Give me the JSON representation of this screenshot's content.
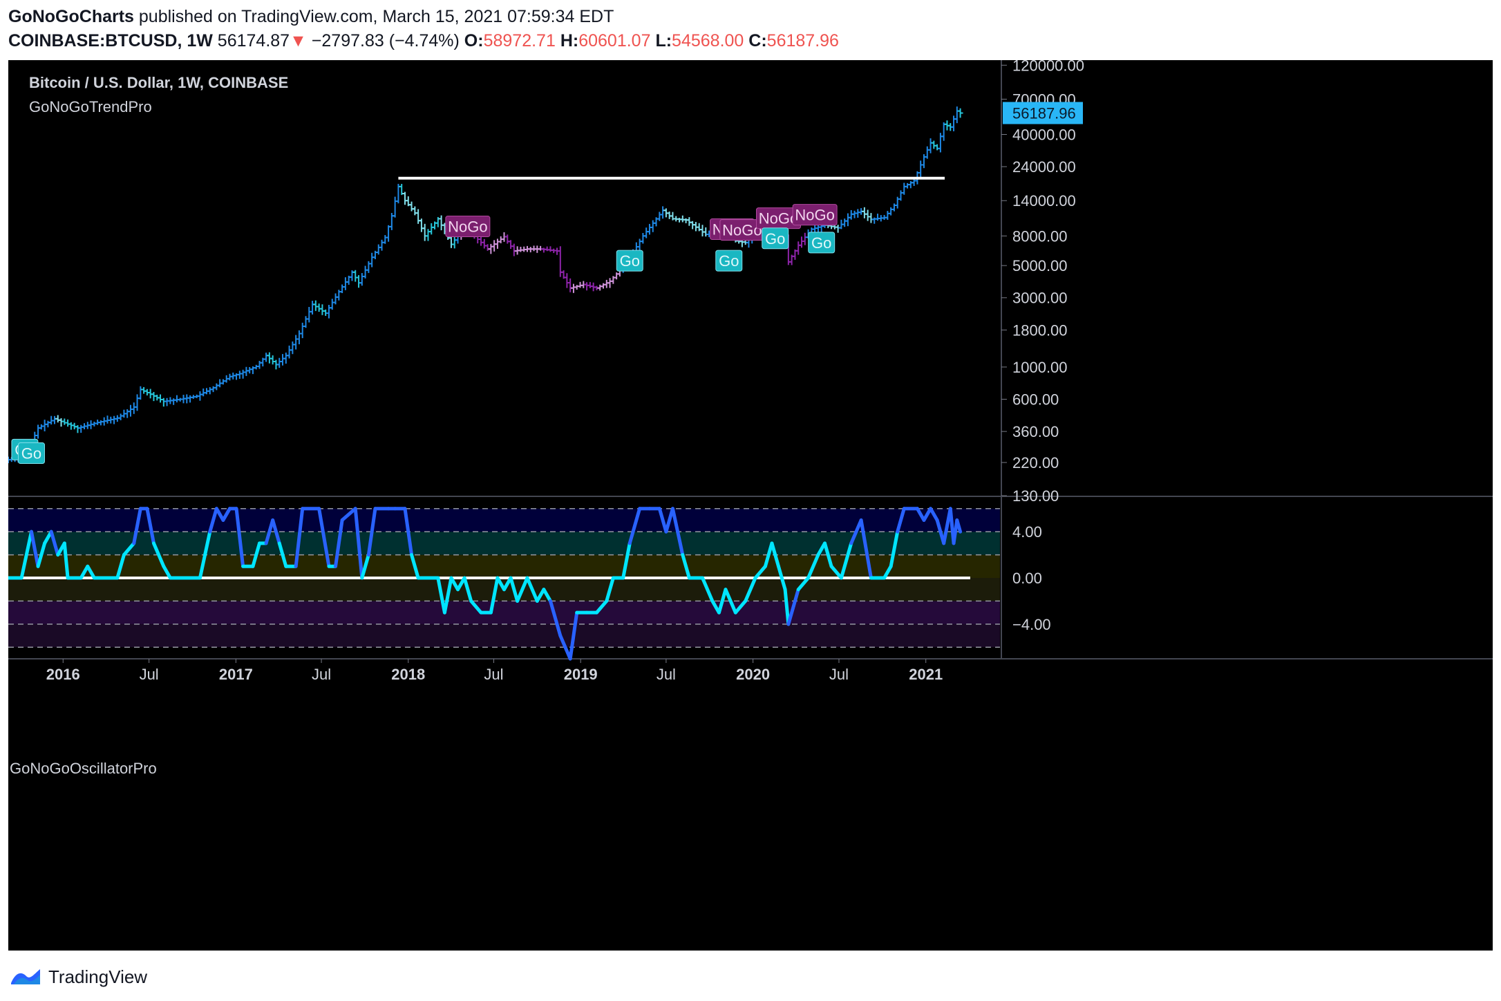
{
  "header": {
    "author": "GoNoGoCharts",
    "published_text": "published on TradingView.com, March 15, 2021 07:59:34 EDT",
    "symbol": "COINBASE:BTCUSD, 1W",
    "last_price": "56174.87",
    "change": "−2797.83 (−4.74%)",
    "open_label": "O:",
    "open": "58972.71",
    "high_label": "H:",
    "high": "60601.07",
    "low_label": "L:",
    "low": "54568.00",
    "close_label": "C:",
    "close": "56187.96"
  },
  "pane_titles": {
    "price": "Bitcoin / U.S. Dollar, 1W, COINBASE",
    "indicator": "GoNoGoTrendPro",
    "oscillator": "GoNoGoOscillatorPro"
  },
  "footer": {
    "brand": "TradingView"
  },
  "colors": {
    "background": "#000000",
    "axis_text": "#d1d4dc",
    "go_strong": "#1e88e5",
    "go": "#26c6da",
    "go_weak": "#80deea",
    "nogo": "#8e24aa",
    "nogo_weak": "#ce93d8",
    "amber": "#ff9800",
    "price_tag": "#29b6f6",
    "osc_go": "#00e5ff",
    "osc_strong": "#2962ff"
  },
  "chart_data": [
    {
      "type": "candlestick",
      "title": "Bitcoin / U.S. Dollar, 1W, COINBASE",
      "y_scale": "log",
      "ylim": [
        130,
        130000
      ],
      "y_ticks": [
        120000,
        70000,
        40000,
        24000,
        14000,
        8000,
        5000,
        3000,
        1800,
        1000,
        600,
        360,
        220,
        130
      ],
      "y_tick_labels": [
        "120000.00",
        "70000.00",
        "40000.00",
        "24000.00",
        "14000.00",
        "8000.00",
        "5000.00",
        "3000.00",
        "1800.00",
        "1000.00",
        "600.00",
        "360.00",
        "220.00",
        "130.00"
      ],
      "x_range": [
        "2015-09-07",
        "2021-06-07"
      ],
      "x_ticks": [
        "2016-01-01",
        "2016-07-01",
        "2017-01-01",
        "2017-07-01",
        "2018-01-01",
        "2018-07-01",
        "2019-01-01",
        "2019-07-01",
        "2020-01-01",
        "2020-07-01",
        "2021-01-01"
      ],
      "x_tick_labels": [
        "2016",
        "Jul",
        "2017",
        "Jul",
        "2018",
        "Jul",
        "2019",
        "Jul",
        "2020",
        "Jul",
        "2021"
      ],
      "price_path": [
        [
          "2015-09-07",
          230
        ],
        [
          "2015-10-05",
          245
        ],
        [
          "2015-10-26",
          300
        ],
        [
          "2015-11-09",
          380
        ],
        [
          "2015-12-14",
          440
        ],
        [
          "2016-02-01",
          380
        ],
        [
          "2016-03-14",
          415
        ],
        [
          "2016-04-25",
          445
        ],
        [
          "2016-05-30",
          530
        ],
        [
          "2016-06-13",
          700
        ],
        [
          "2016-07-04",
          650
        ],
        [
          "2016-08-01",
          580
        ],
        [
          "2016-09-05",
          600
        ],
        [
          "2016-10-10",
          630
        ],
        [
          "2016-11-14",
          720
        ],
        [
          "2016-12-19",
          860
        ],
        [
          "2017-01-09",
          900
        ],
        [
          "2017-02-13",
          1010
        ],
        [
          "2017-03-06",
          1200
        ],
        [
          "2017-03-27",
          1040
        ],
        [
          "2017-04-17",
          1200
        ],
        [
          "2017-05-15",
          1700
        ],
        [
          "2017-06-12",
          2700
        ],
        [
          "2017-07-10",
          2350
        ],
        [
          "2017-08-07",
          3300
        ],
        [
          "2017-09-04",
          4500
        ],
        [
          "2017-09-18",
          3800
        ],
        [
          "2017-10-16",
          5700
        ],
        [
          "2017-11-13",
          7800
        ],
        [
          "2017-11-27",
          11000
        ],
        [
          "2017-12-11",
          17500
        ],
        [
          "2017-12-25",
          14000
        ],
        [
          "2018-01-15",
          11500
        ],
        [
          "2018-02-05",
          8000
        ],
        [
          "2018-03-05",
          10500
        ],
        [
          "2018-04-02",
          7000
        ],
        [
          "2018-04-30",
          9200
        ],
        [
          "2018-05-21",
          8000
        ],
        [
          "2018-06-18",
          6500
        ],
        [
          "2018-07-23",
          7900
        ],
        [
          "2018-08-13",
          6300
        ],
        [
          "2018-09-10",
          6500
        ],
        [
          "2018-10-08",
          6500
        ],
        [
          "2018-11-12",
          6300
        ],
        [
          "2018-11-19",
          4500
        ],
        [
          "2018-12-10",
          3500
        ],
        [
          "2019-01-07",
          3700
        ],
        [
          "2019-02-04",
          3500
        ],
        [
          "2019-03-04",
          3900
        ],
        [
          "2019-04-08",
          5200
        ],
        [
          "2019-05-13",
          8000
        ],
        [
          "2019-06-24",
          12000
        ],
        [
          "2019-07-15",
          10500
        ],
        [
          "2019-08-12",
          10300
        ],
        [
          "2019-09-23",
          8200
        ],
        [
          "2019-10-28",
          9200
        ],
        [
          "2019-11-25",
          7400
        ],
        [
          "2019-12-16",
          7200
        ],
        [
          "2020-01-13",
          8800
        ],
        [
          "2020-02-10",
          10200
        ],
        [
          "2020-03-09",
          7900
        ],
        [
          "2020-03-16",
          5300
        ],
        [
          "2020-04-06",
          6900
        ],
        [
          "2020-05-04",
          8900
        ],
        [
          "2020-06-01",
          9500
        ],
        [
          "2020-06-29",
          9100
        ],
        [
          "2020-07-27",
          11300
        ],
        [
          "2020-08-17",
          11800
        ],
        [
          "2020-09-07",
          10400
        ],
        [
          "2020-10-05",
          10700
        ],
        [
          "2020-10-26",
          13000
        ],
        [
          "2020-11-16",
          17500
        ],
        [
          "2020-12-07",
          19200
        ],
        [
          "2020-12-28",
          28000
        ],
        [
          "2021-01-11",
          35000
        ],
        [
          "2021-01-25",
          32000
        ],
        [
          "2021-02-08",
          47000
        ],
        [
          "2021-02-22",
          45000
        ],
        [
          "2021-03-08",
          58000
        ],
        [
          "2021-03-15",
          56188
        ]
      ],
      "resistance_line": {
        "value": 20000,
        "start": "2017-12-11",
        "end": "2021-06-07"
      },
      "last_price_label": "56187.96",
      "annotations": [
        {
          "text": "Go",
          "type": "go",
          "date": "2015-10-12",
          "price": 270
        },
        {
          "text": "Go",
          "type": "go",
          "date": "2015-10-26",
          "price": 255
        },
        {
          "text": "NoGo",
          "type": "nogo",
          "date": "2018-05-07",
          "price": 9300
        },
        {
          "text": "Go",
          "type": "go",
          "date": "2019-04-15",
          "price": 5400
        },
        {
          "text": "NoGo",
          "type": "nogo",
          "date": "2019-11-18",
          "price": 8900
        },
        {
          "text": "NoGo",
          "type": "nogo",
          "date": "2019-12-09",
          "price": 8800
        },
        {
          "text": "Go",
          "type": "go",
          "date": "2019-11-11",
          "price": 5400
        },
        {
          "text": "NoGo",
          "type": "nogo",
          "date": "2020-02-24",
          "price": 10600
        },
        {
          "text": "Go",
          "type": "go",
          "date": "2020-02-17",
          "price": 7700
        },
        {
          "text": "NoGo",
          "type": "nogo",
          "date": "2020-05-11",
          "price": 11200
        },
        {
          "text": "Go",
          "type": "go",
          "date": "2020-05-25",
          "price": 7200
        }
      ]
    },
    {
      "type": "line",
      "title": "GoNoGoOscillatorPro",
      "ylim": [
        -7,
        7
      ],
      "y_ticks": [
        4,
        0,
        -4
      ],
      "y_tick_labels": [
        "4.00",
        "0.00",
        "−4.00"
      ],
      "bands": [
        -6,
        -4,
        -2,
        0,
        2,
        4,
        6
      ],
      "zero_line": 0,
      "series": [
        {
          "values": [
            [
              "2015-09-07",
              0
            ],
            [
              "2015-10-05",
              0
            ],
            [
              "2015-10-26",
              4
            ],
            [
              "2015-11-09",
              1
            ],
            [
              "2015-11-23",
              3
            ],
            [
              "2015-12-07",
              4
            ],
            [
              "2015-12-21",
              2
            ],
            [
              "2016-01-04",
              3
            ],
            [
              "2016-01-11",
              0
            ],
            [
              "2016-02-08",
              0
            ],
            [
              "2016-02-22",
              1
            ],
            [
              "2016-03-07",
              0
            ],
            [
              "2016-04-25",
              0
            ],
            [
              "2016-05-09",
              2
            ],
            [
              "2016-05-30",
              3
            ],
            [
              "2016-06-13",
              6
            ],
            [
              "2016-06-27",
              6
            ],
            [
              "2016-07-11",
              3
            ],
            [
              "2016-08-01",
              1
            ],
            [
              "2016-08-15",
              0
            ],
            [
              "2016-10-17",
              0
            ],
            [
              "2016-11-07",
              4
            ],
            [
              "2016-11-21",
              6
            ],
            [
              "2016-12-05",
              5
            ],
            [
              "2016-12-19",
              6
            ],
            [
              "2017-01-02",
              6
            ],
            [
              "2017-01-16",
              1
            ],
            [
              "2017-02-06",
              1
            ],
            [
              "2017-02-20",
              3
            ],
            [
              "2017-03-06",
              3
            ],
            [
              "2017-03-20",
              5
            ],
            [
              "2017-04-03",
              3
            ],
            [
              "2017-04-17",
              1
            ],
            [
              "2017-05-08",
              1
            ],
            [
              "2017-05-22",
              6
            ],
            [
              "2017-06-26",
              6
            ],
            [
              "2017-07-17",
              1
            ],
            [
              "2017-07-31",
              1
            ],
            [
              "2017-08-14",
              5
            ],
            [
              "2017-09-11",
              6
            ],
            [
              "2017-09-25",
              0
            ],
            [
              "2017-10-09",
              2
            ],
            [
              "2017-10-23",
              6
            ],
            [
              "2017-11-20",
              6
            ],
            [
              "2017-12-04",
              6
            ],
            [
              "2017-12-25",
              6
            ],
            [
              "2018-01-08",
              2
            ],
            [
              "2018-01-22",
              0
            ],
            [
              "2018-03-05",
              0
            ],
            [
              "2018-03-19",
              -3
            ],
            [
              "2018-04-02",
              0
            ],
            [
              "2018-04-16",
              -1
            ],
            [
              "2018-04-30",
              0
            ],
            [
              "2018-05-14",
              -2
            ],
            [
              "2018-06-04",
              -3
            ],
            [
              "2018-06-25",
              -3
            ],
            [
              "2018-07-09",
              0
            ],
            [
              "2018-07-23",
              -1
            ],
            [
              "2018-08-06",
              0
            ],
            [
              "2018-08-20",
              -2
            ],
            [
              "2018-09-10",
              0
            ],
            [
              "2018-10-01",
              -2
            ],
            [
              "2018-10-15",
              -1
            ],
            [
              "2018-10-29",
              -2
            ],
            [
              "2018-11-19",
              -5
            ],
            [
              "2018-12-10",
              -7
            ],
            [
              "2018-12-24",
              -3
            ],
            [
              "2019-01-14",
              -3
            ],
            [
              "2019-02-04",
              -3
            ],
            [
              "2019-02-25",
              -2
            ],
            [
              "2019-03-11",
              0
            ],
            [
              "2019-04-01",
              0
            ],
            [
              "2019-04-15",
              3
            ],
            [
              "2019-05-06",
              6
            ],
            [
              "2019-05-27",
              6
            ],
            [
              "2019-06-17",
              6
            ],
            [
              "2019-07-01",
              4
            ],
            [
              "2019-07-15",
              6
            ],
            [
              "2019-08-05",
              2
            ],
            [
              "2019-08-19",
              0
            ],
            [
              "2019-09-16",
              0
            ],
            [
              "2019-10-07",
              -2
            ],
            [
              "2019-10-21",
              -3
            ],
            [
              "2019-11-04",
              -1
            ],
            [
              "2019-11-25",
              -3
            ],
            [
              "2019-12-16",
              -2
            ],
            [
              "2020-01-06",
              0
            ],
            [
              "2020-01-27",
              1
            ],
            [
              "2020-02-10",
              3
            ],
            [
              "2020-02-24",
              1
            ],
            [
              "2020-03-09",
              -1
            ],
            [
              "2020-03-16",
              -4
            ],
            [
              "2020-04-06",
              -1
            ],
            [
              "2020-04-27",
              0
            ],
            [
              "2020-05-18",
              2
            ],
            [
              "2020-06-01",
              3
            ],
            [
              "2020-06-15",
              1
            ],
            [
              "2020-07-06",
              0
            ],
            [
              "2020-07-27",
              3
            ],
            [
              "2020-08-17",
              5
            ],
            [
              "2020-09-07",
              0
            ],
            [
              "2020-10-05",
              0
            ],
            [
              "2020-10-19",
              1
            ],
            [
              "2020-11-02",
              4
            ],
            [
              "2020-11-16",
              6
            ],
            [
              "2020-12-14",
              6
            ],
            [
              "2020-12-28",
              5
            ],
            [
              "2021-01-11",
              6
            ],
            [
              "2021-01-25",
              5
            ],
            [
              "2021-02-08",
              3
            ],
            [
              "2021-02-22",
              6
            ],
            [
              "2021-03-01",
              3
            ],
            [
              "2021-03-08",
              5
            ],
            [
              "2021-03-15",
              4
            ]
          ]
        }
      ]
    }
  ]
}
